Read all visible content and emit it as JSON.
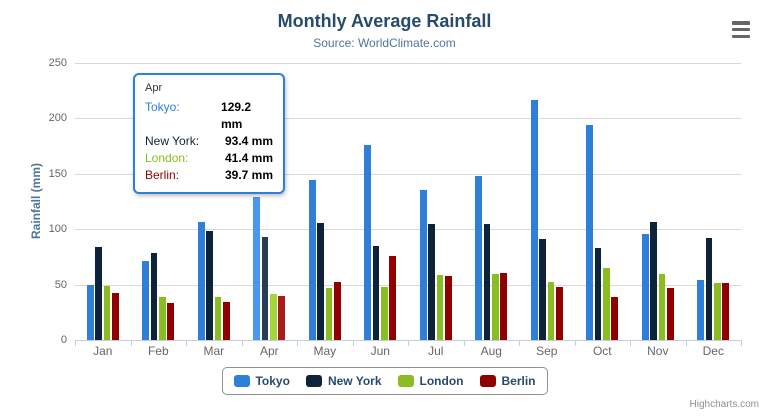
{
  "header": {
    "title": "Monthly Average Rainfall",
    "subtitle": "Source: WorldClimate.com"
  },
  "chart_data": {
    "type": "bar",
    "title": "Monthly Average Rainfall",
    "subtitle": "Source: WorldClimate.com",
    "categories": [
      "Jan",
      "Feb",
      "Mar",
      "Apr",
      "May",
      "Jun",
      "Jul",
      "Aug",
      "Sep",
      "Oct",
      "Nov",
      "Dec"
    ],
    "series": [
      {
        "name": "Tokyo",
        "color": "#2f7ed8",
        "hover_color": "#4897f1",
        "values": [
          49.9,
          71.5,
          106.4,
          129.2,
          144.0,
          176.0,
          135.6,
          148.5,
          216.4,
          194.1,
          95.6,
          54.4
        ]
      },
      {
        "name": "New York",
        "color": "#0d233a",
        "hover_color": "#273d54",
        "values": [
          83.6,
          78.8,
          98.5,
          93.4,
          106.0,
          84.5,
          105.0,
          104.3,
          91.2,
          83.5,
          106.6,
          92.3
        ]
      },
      {
        "name": "London",
        "color": "#8bbc21",
        "hover_color": "#a5d63b",
        "values": [
          48.9,
          38.8,
          39.3,
          41.4,
          47.0,
          48.3,
          59.0,
          59.6,
          52.4,
          65.2,
          59.3,
          51.2
        ]
      },
      {
        "name": "Berlin",
        "color": "#910000",
        "hover_color": "#ab1a1a",
        "values": [
          42.4,
          33.2,
          34.5,
          39.7,
          52.6,
          75.5,
          57.4,
          60.4,
          47.6,
          39.1,
          46.8,
          51.1
        ]
      }
    ],
    "xlabel": "",
    "ylabel": "Rainfall (mm)",
    "ylim": [
      0,
      250
    ],
    "yticks": [
      0,
      50,
      100,
      150,
      200,
      250
    ],
    "grid": true,
    "legend_position": "bottom",
    "hovered_category": "Apr",
    "hovered_index": 3
  },
  "tooltip": {
    "header": "Apr",
    "border_color": "#2f7ed8",
    "rows": [
      {
        "name": "Tokyo:",
        "value": "129.2 mm",
        "color": "#2f7ed8"
      },
      {
        "name": "New York:",
        "value": "93.4 mm",
        "color": "#0d233a"
      },
      {
        "name": "London:",
        "value": "41.4 mm",
        "color": "#8bbc21"
      },
      {
        "name": "Berlin:",
        "value": "39.7 mm",
        "color": "#910000"
      }
    ]
  },
  "legend": {
    "items": [
      {
        "label": "Tokyo",
        "color": "#2f7ed8"
      },
      {
        "label": "New York",
        "color": "#0d233a"
      },
      {
        "label": "London",
        "color": "#8bbc21"
      },
      {
        "label": "Berlin",
        "color": "#910000"
      }
    ]
  },
  "credits": {
    "label": "Highcharts.com"
  },
  "icons": {
    "menu": "hamburger-icon"
  }
}
